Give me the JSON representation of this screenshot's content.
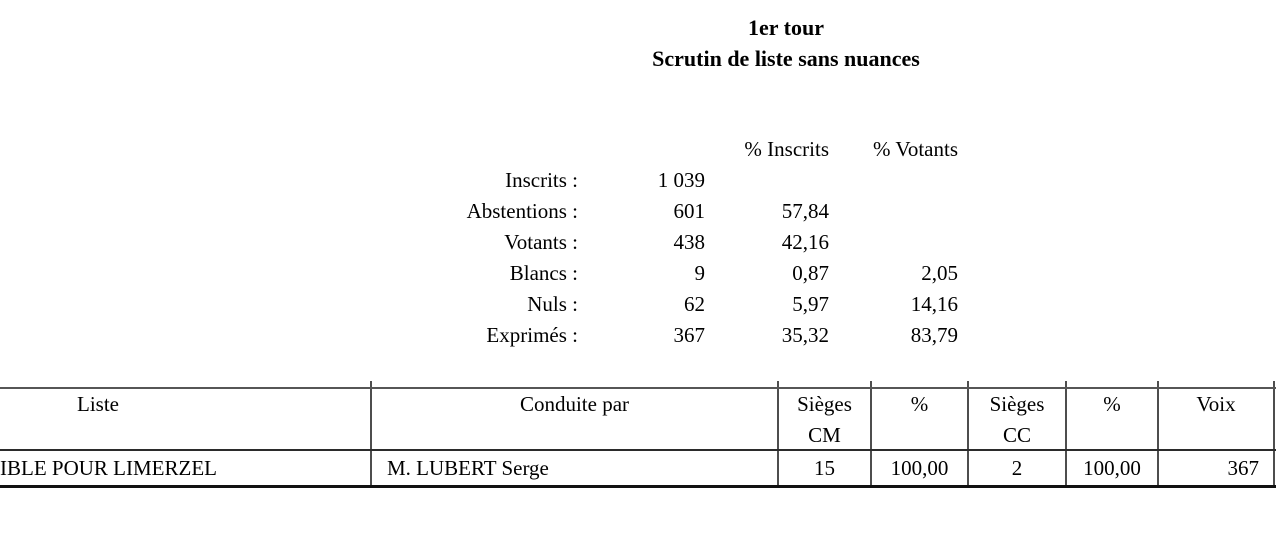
{
  "title": {
    "line1": "1er tour",
    "line2": "Scrutin de liste sans nuances"
  },
  "stats": {
    "col_headers": {
      "pct_inscrits": "% Inscrits",
      "pct_votants": "% Votants"
    },
    "rows": [
      {
        "label": "Inscrits :",
        "value": "1 039",
        "pct_inscrits": "",
        "pct_votants": ""
      },
      {
        "label": "Abstentions :",
        "value": "601",
        "pct_inscrits": "57,84",
        "pct_votants": ""
      },
      {
        "label": "Votants :",
        "value": "438",
        "pct_inscrits": "42,16",
        "pct_votants": ""
      },
      {
        "label": "Blancs :",
        "value": "9",
        "pct_inscrits": "0,87",
        "pct_votants": "2,05"
      },
      {
        "label": "Nuls :",
        "value": "62",
        "pct_inscrits": "5,97",
        "pct_votants": "14,16"
      },
      {
        "label": "Exprimés :",
        "value": "367",
        "pct_inscrits": "35,32",
        "pct_votants": "83,79"
      }
    ]
  },
  "results_table": {
    "headers": {
      "liste": "Liste",
      "conduite_par": "Conduite par",
      "sieges_cm": "Sièges\nCM",
      "pct_cm": "%",
      "sieges_cc": "Sièges\nCC",
      "pct_cc": "%",
      "voix": "Voix"
    },
    "rows": [
      {
        "liste": "IBLE POUR LIMERZEL",
        "conduite_par": "M. LUBERT Serge",
        "sieges_cm": "15",
        "pct_cm": "100,00",
        "sieges_cc": "2",
        "pct_cc": "100,00",
        "voix": "367"
      }
    ]
  }
}
